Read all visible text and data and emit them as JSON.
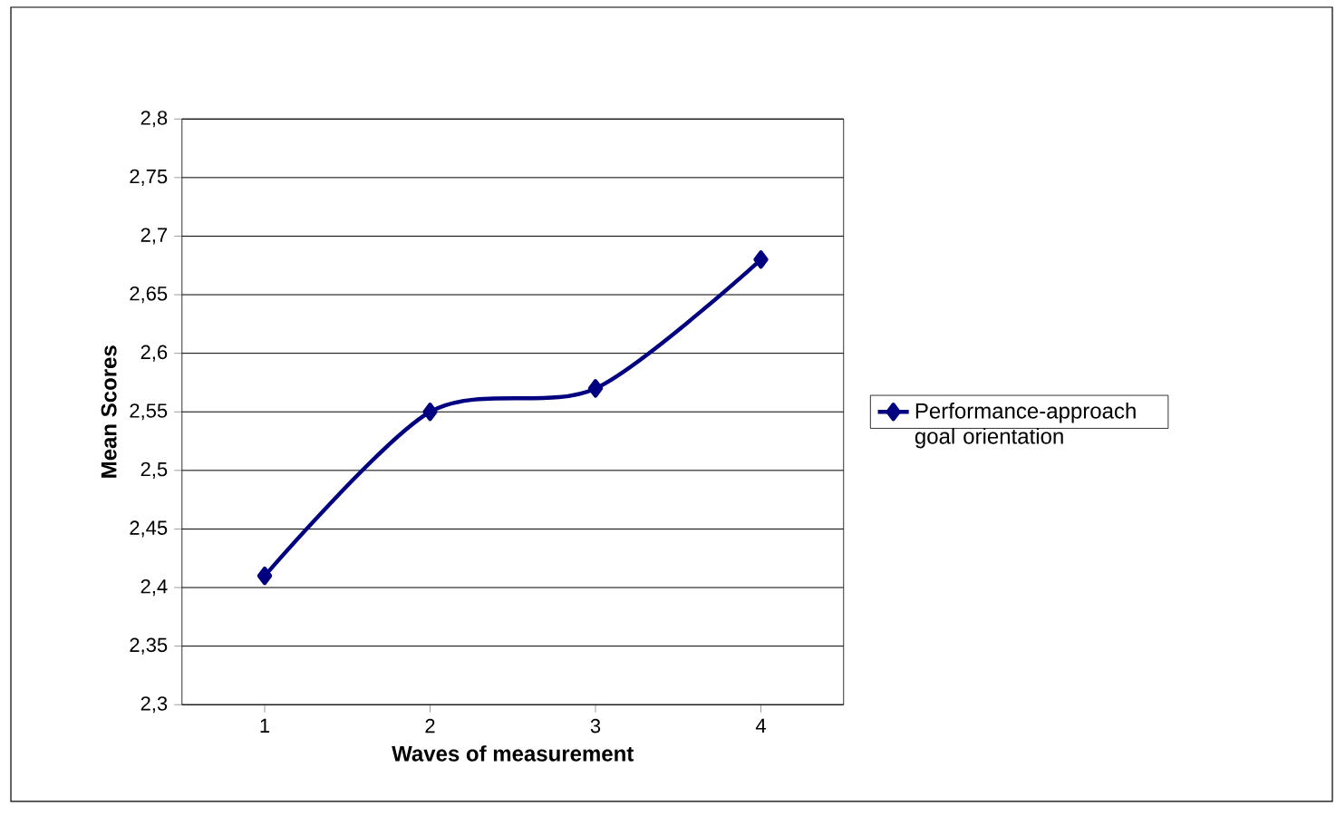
{
  "chart_data": {
    "type": "line",
    "xlabel": "Waves of measurement",
    "ylabel": "Mean Scores",
    "categories": [
      "1",
      "2",
      "3",
      "4"
    ],
    "series": [
      {
        "name": "Performance-approach goal orientation",
        "color": "#000080",
        "values": [
          2.41,
          2.55,
          2.57,
          2.68
        ]
      }
    ],
    "ylim": [
      2.3,
      2.8
    ],
    "yticks": [
      {
        "value": 2.3,
        "label": "2,3"
      },
      {
        "value": 2.35,
        "label": "2,35"
      },
      {
        "value": 2.4,
        "label": "2,4"
      },
      {
        "value": 2.45,
        "label": "2,45"
      },
      {
        "value": 2.5,
        "label": "2,5"
      },
      {
        "value": 2.55,
        "label": "2,55"
      },
      {
        "value": 2.6,
        "label": "2,6"
      },
      {
        "value": 2.65,
        "label": "2,65"
      },
      {
        "value": 2.7,
        "label": "2,7"
      },
      {
        "value": 2.75,
        "label": "2,75"
      },
      {
        "value": 2.8,
        "label": "2,8"
      }
    ],
    "grid": "y",
    "legend": "right",
    "marker": "diamond",
    "line_style": "solid"
  }
}
